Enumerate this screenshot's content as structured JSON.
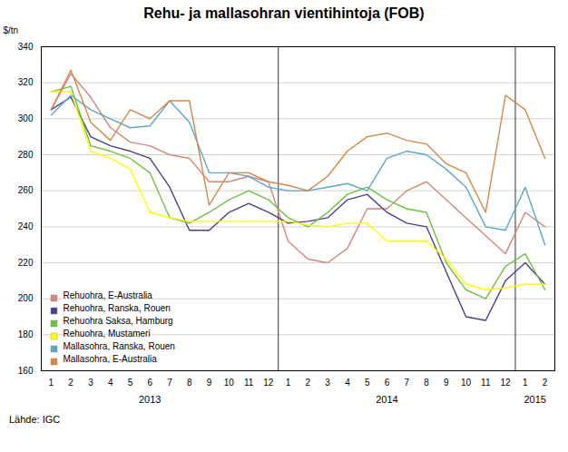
{
  "chart_data": {
    "type": "line",
    "title": "Rehu- ja mallasohran vientihintoja (FOB)",
    "ylabel": "$/tn",
    "source": "Lähde: IGC",
    "categories": [
      "1",
      "2",
      "3",
      "4",
      "5",
      "6",
      "7",
      "8",
      "9",
      "10",
      "11",
      "12",
      "1",
      "2",
      "3",
      "4",
      "5",
      "6",
      "7",
      "8",
      "9",
      "10",
      "11",
      "12",
      "1",
      "2"
    ],
    "series": [
      {
        "name": "Rehuohra, E-Australia",
        "color": "#D4877A",
        "values": [
          305,
          325,
          312,
          295,
          287,
          285,
          280,
          278,
          265,
          265,
          268,
          265,
          232,
          222,
          220,
          228,
          250,
          250,
          260,
          265,
          255,
          245,
          235,
          225,
          248,
          240
        ]
      },
      {
        "name": "Rehuohra, Ranska, Rouen",
        "color": "#4B3F8C",
        "values": [
          305,
          312,
          290,
          285,
          282,
          278,
          262,
          238,
          238,
          248,
          253,
          248,
          242,
          243,
          245,
          255,
          258,
          248,
          242,
          240,
          215,
          190,
          188,
          210,
          220,
          208
        ]
      },
      {
        "name": "Rehuohra Saksa, Hamburg",
        "color": "#70C040",
        "values": [
          315,
          318,
          285,
          282,
          278,
          270,
          245,
          242,
          248,
          255,
          260,
          255,
          245,
          240,
          248,
          258,
          262,
          255,
          250,
          248,
          220,
          205,
          200,
          218,
          225,
          205
        ]
      },
      {
        "name": "Rehuohra, Mustameri",
        "color": "#FFFF00",
        "values": [
          315,
          315,
          282,
          278,
          272,
          248,
          245,
          243,
          243,
          243,
          243,
          243,
          243,
          241,
          240,
          242,
          242,
          232,
          232,
          232,
          222,
          208,
          205,
          206,
          208,
          208
        ]
      },
      {
        "name": "Mallasohra, Ranska, Rouen",
        "color": "#5BA8C8",
        "values": [
          302,
          313,
          305,
          300,
          295,
          296,
          310,
          298,
          270,
          270,
          268,
          262,
          260,
          260,
          262,
          264,
          260,
          278,
          282,
          280,
          272,
          262,
          240,
          238,
          262,
          230
        ]
      },
      {
        "name": "Mallasohra, E-Australia",
        "color": "#D4884A",
        "values": [
          305,
          327,
          298,
          288,
          305,
          300,
          310,
          310,
          252,
          270,
          270,
          265,
          263,
          260,
          268,
          282,
          290,
          292,
          288,
          286,
          275,
          270,
          248,
          313,
          305,
          278
        ]
      }
    ],
    "ylim": [
      160,
      340
    ],
    "yticks": [
      160,
      180,
      200,
      220,
      240,
      260,
      280,
      300,
      320,
      340
    ],
    "grid": true,
    "legend": "lower left",
    "annotations": [
      {
        "text": "2013",
        "x": 6
      },
      {
        "text": "2014",
        "x": 18
      },
      {
        "text": "2015",
        "x": 25.5
      }
    ],
    "vlines": [
      12.5,
      24.5
    ]
  }
}
